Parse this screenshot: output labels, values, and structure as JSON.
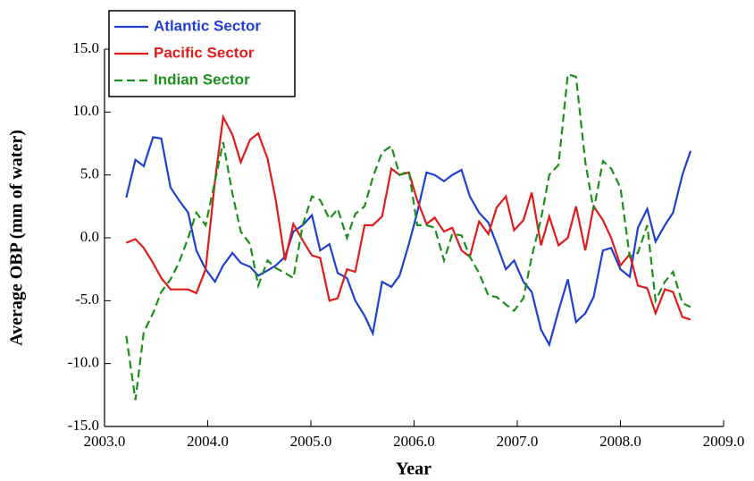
{
  "chart_data": {
    "type": "line",
    "x_label": "Year",
    "y_label": "Average OBP (mm of water)",
    "x": [
      2003.21,
      2003.3,
      2003.38,
      2003.47,
      2003.55,
      2003.64,
      2003.72,
      2003.81,
      2003.89,
      2003.98,
      2004.07,
      2004.15,
      2004.24,
      2004.32,
      2004.41,
      2004.49,
      2004.58,
      2004.66,
      2004.75,
      2004.83,
      2004.92,
      2005.01,
      2005.09,
      2005.18,
      2005.26,
      2005.35,
      2005.43,
      2005.52,
      2005.6,
      2005.69,
      2005.78,
      2005.86,
      2005.95,
      2006.03,
      2006.12,
      2006.2,
      2006.29,
      2006.37,
      2006.46,
      2006.54,
      2006.63,
      2006.72,
      2006.8,
      2006.89,
      2006.97,
      2007.06,
      2007.14,
      2007.23,
      2007.31,
      2007.4,
      2007.49,
      2007.57,
      2007.66,
      2007.74,
      2007.83,
      2007.91,
      2008.0,
      2008.09,
      2008.17,
      2008.26,
      2008.34,
      2008.43,
      2008.51,
      2008.6,
      2008.68
    ],
    "series": [
      {
        "name": "Atlantic Sector",
        "color": "#1f3fd0",
        "linestyle": "solid",
        "values": [
          3.2,
          6.2,
          5.7,
          8.0,
          7.9,
          4.0,
          3.0,
          2.0,
          -1.0,
          -2.5,
          -3.5,
          -2.2,
          -1.2,
          -2.0,
          -2.3,
          -3.0,
          -2.6,
          -2.2,
          -1.5,
          0.5,
          1.0,
          1.8,
          -1.0,
          -0.5,
          -2.8,
          -3.2,
          -5.0,
          -6.2,
          -7.6,
          -3.5,
          -3.9,
          -3.0,
          -0.5,
          2.0,
          5.2,
          5.0,
          4.5,
          5.0,
          5.4,
          3.3,
          2.0,
          1.2,
          -0.5,
          -2.5,
          -1.8,
          -3.5,
          -4.3,
          -7.3,
          -8.5,
          -5.8,
          -3.3,
          -6.7,
          -6.0,
          -4.7,
          -1.0,
          -0.8,
          -2.5,
          -3.1,
          0.8,
          2.3,
          -0.3,
          1.0,
          2.0,
          5.0,
          6.9
        ]
      },
      {
        "name": "Pacific Sector",
        "color": "#e01b1b",
        "linestyle": "solid",
        "values": [
          -0.4,
          -0.1,
          -0.8,
          -2.0,
          -3.2,
          -4.1,
          -4.1,
          -4.1,
          -4.4,
          -2.5,
          4.5,
          9.6,
          8.2,
          6.0,
          7.8,
          8.3,
          6.3,
          3.0,
          -1.8,
          1.1,
          -0.2,
          -1.4,
          -1.6,
          -5.0,
          -4.8,
          -2.5,
          -2.7,
          1.0,
          1.0,
          1.7,
          5.5,
          5.0,
          5.2,
          3.0,
          1.1,
          1.6,
          0.5,
          0.8,
          -1.0,
          -1.5,
          1.3,
          0.3,
          2.4,
          3.3,
          0.6,
          1.4,
          3.6,
          -0.6,
          1.7,
          -0.6,
          0.0,
          2.5,
          -1.0,
          2.5,
          1.4,
          0.0,
          -2.2,
          -1.3,
          -3.8,
          -4.0,
          -6.0,
          -4.1,
          -4.3,
          -6.3,
          -6.5
        ]
      },
      {
        "name": "Indian Sector",
        "color": "#1a8f1a",
        "linestyle": "dashed",
        "values": [
          -7.8,
          -12.9,
          -7.5,
          -6.0,
          -4.3,
          -3.3,
          -2.0,
          0.0,
          2.0,
          1.0,
          4.5,
          7.6,
          3.5,
          0.5,
          -0.5,
          -3.8,
          -1.8,
          -2.4,
          -2.8,
          -3.2,
          1.0,
          3.3,
          3.0,
          1.5,
          2.3,
          0.0,
          1.9,
          2.5,
          4.8,
          6.8,
          7.3,
          5.0,
          5.3,
          1.0,
          1.0,
          0.8,
          -1.8,
          0.3,
          0.2,
          -1.5,
          -2.8,
          -4.6,
          -4.7,
          -5.3,
          -5.8,
          -4.8,
          -1.5,
          1.5,
          5.0,
          5.8,
          13.0,
          12.8,
          6.0,
          2.2,
          6.1,
          5.5,
          4.0,
          -1.5,
          -1.2,
          1.0,
          -5.0,
          -3.5,
          -2.7,
          -5.2,
          -5.5
        ]
      }
    ],
    "xlim": [
      2003,
      2009
    ],
    "xticks": [
      {
        "value": 2003,
        "label": "2003.0"
      },
      {
        "value": 2004,
        "label": "2004.0"
      },
      {
        "value": 2005,
        "label": "2005.0"
      },
      {
        "value": 2006,
        "label": "2006.0"
      },
      {
        "value": 2007,
        "label": "2007.0"
      },
      {
        "value": 2008,
        "label": "2008.0"
      },
      {
        "value": 2009,
        "label": "2009.0"
      }
    ],
    "ylim": [
      -15,
      15
    ],
    "yticks": [
      {
        "value": -15,
        "label": "-15.0"
      },
      {
        "value": -10,
        "label": "-10.0"
      },
      {
        "value": -5,
        "label": "-5.0"
      },
      {
        "value": 0,
        "label": "0.0"
      },
      {
        "value": 5,
        "label": "5.0"
      },
      {
        "value": 10,
        "label": "10.0"
      },
      {
        "value": 15,
        "label": "15.0"
      }
    ],
    "legend": "upper left",
    "grid": false
  }
}
